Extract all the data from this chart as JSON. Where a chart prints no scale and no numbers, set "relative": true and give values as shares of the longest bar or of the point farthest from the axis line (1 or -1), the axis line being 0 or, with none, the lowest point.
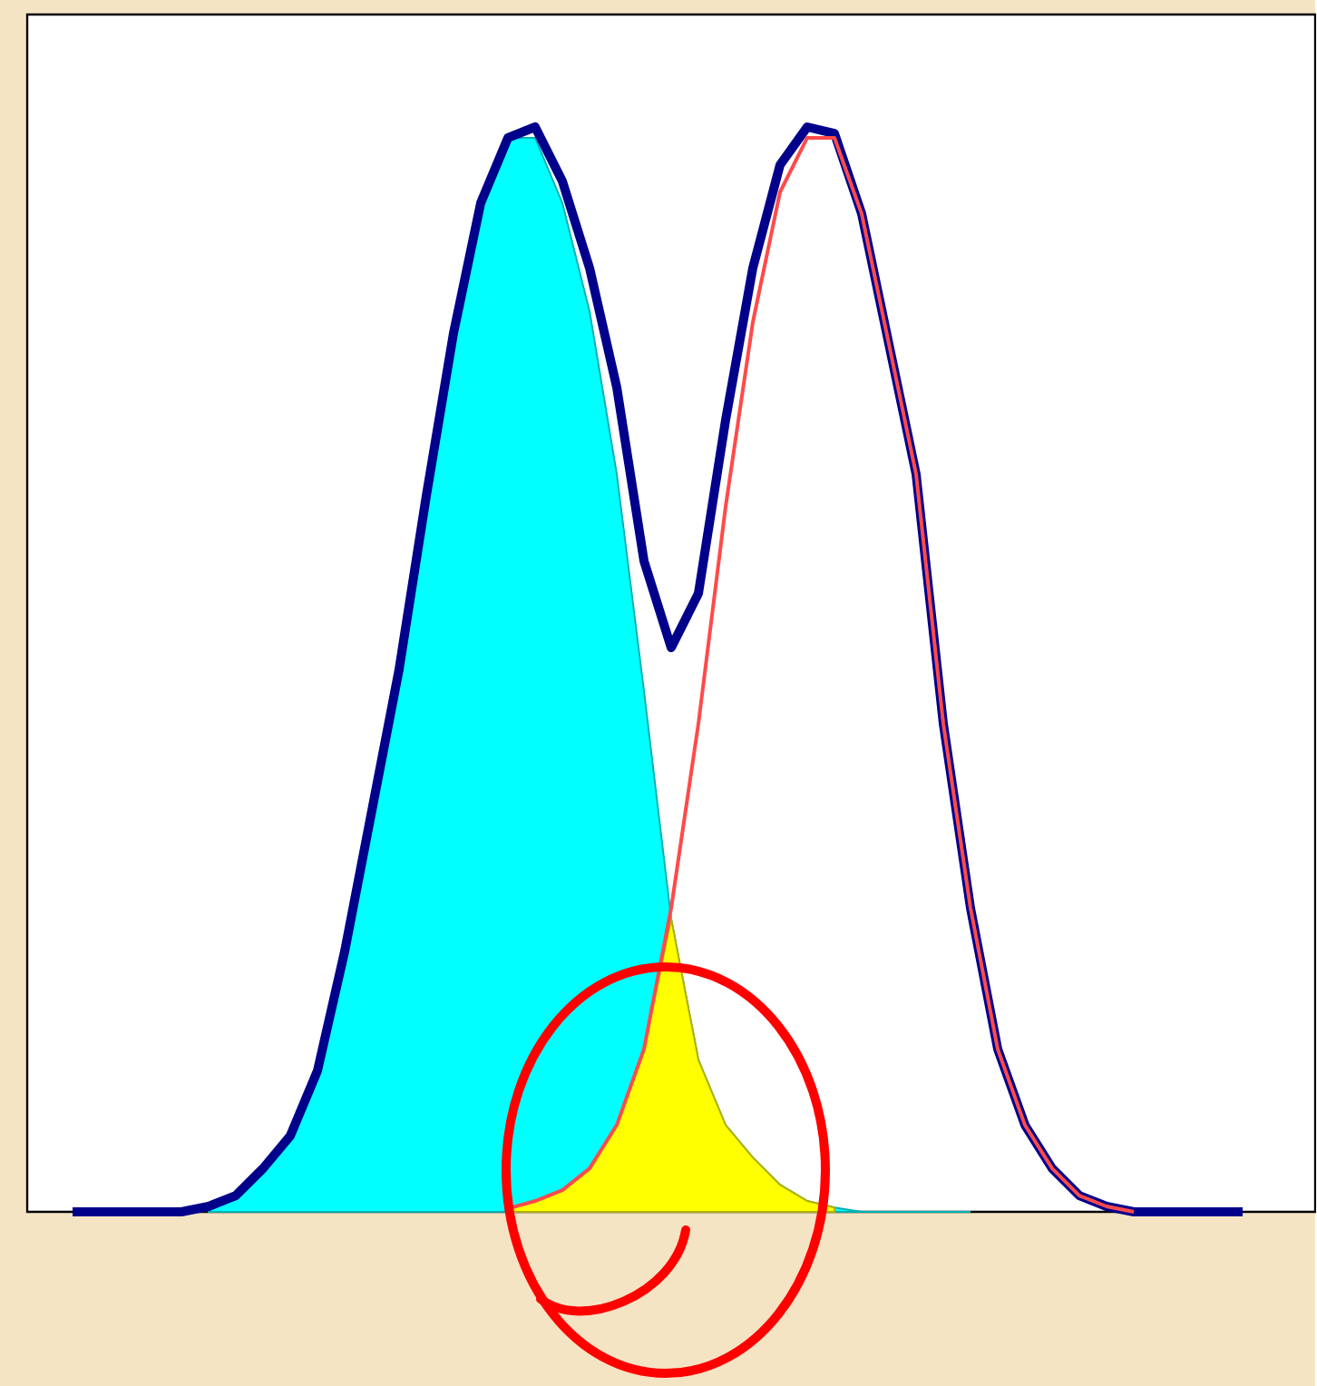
{
  "chart_data": {
    "type": "area",
    "relative": true,
    "categories": [
      null,
      null,
      null,
      null,
      null,
      null,
      null,
      null,
      null,
      null,
      null,
      null,
      null,
      null,
      null,
      null,
      null,
      null,
      null,
      null,
      null,
      null,
      null,
      null,
      null,
      null,
      null,
      null,
      null,
      null,
      null,
      null,
      null,
      null,
      null,
      null,
      null,
      null,
      null,
      null,
      null,
      null,
      null,
      null,
      null
    ],
    "series": [
      {
        "color": "#00ffff",
        "values": [
          null,
          null,
          null,
          null,
          null,
          0.005,
          0.015,
          0.04,
          0.07,
          0.13,
          0.24,
          0.37,
          0.5,
          0.66,
          0.81,
          0.93,
          0.99,
          0.99,
          0.93,
          0.83,
          0.68,
          0.48,
          0.27,
          0.14,
          0.08,
          0.05,
          0.025,
          0.01,
          0.004,
          0,
          0,
          0,
          0,
          0,
          null,
          null,
          null,
          null,
          null,
          null,
          null,
          null,
          null,
          null,
          null
        ]
      },
      {
        "color": "#ffff00",
        "values": [
          null,
          null,
          null,
          null,
          null,
          null,
          null,
          null,
          null,
          null,
          null,
          null,
          null,
          null,
          null,
          null,
          0.003,
          0.01,
          0.02,
          0.04,
          0.08,
          0.15,
          0.27,
          0.14,
          0.08,
          0.05,
          0.025,
          0.01,
          0.004,
          null,
          null,
          null,
          null,
          null,
          null,
          null,
          null,
          null,
          null,
          null,
          null,
          null,
          null,
          null,
          null
        ]
      },
      {
        "type": "line",
        "color": "#00008b",
        "values": [
          0,
          0,
          0,
          0,
          0,
          0.005,
          0.015,
          0.04,
          0.07,
          0.13,
          0.24,
          0.37,
          0.5,
          0.66,
          0.81,
          0.93,
          0.99,
          1.0,
          0.95,
          0.87,
          0.76,
          0.6,
          0.52,
          0.57,
          0.73,
          0.87,
          0.965,
          1.0,
          0.994,
          0.92,
          0.8,
          0.68,
          0.45,
          0.28,
          0.15,
          0.08,
          0.04,
          0.015,
          0.005,
          0,
          0,
          0,
          0,
          0,
          null
        ]
      },
      {
        "type": "line",
        "color": "#ff4a4a",
        "values": [
          null,
          null,
          null,
          null,
          null,
          null,
          null,
          null,
          null,
          null,
          null,
          null,
          null,
          null,
          null,
          null,
          0.003,
          0.01,
          0.02,
          0.04,
          0.08,
          0.15,
          0.28,
          0.45,
          0.65,
          0.82,
          0.94,
          0.99,
          0.99,
          0.92,
          0.8,
          0.68,
          0.45,
          0.28,
          0.15,
          0.08,
          0.04,
          0.015,
          0.005,
          0,
          null,
          null,
          null,
          null,
          null
        ]
      }
    ]
  }
}
